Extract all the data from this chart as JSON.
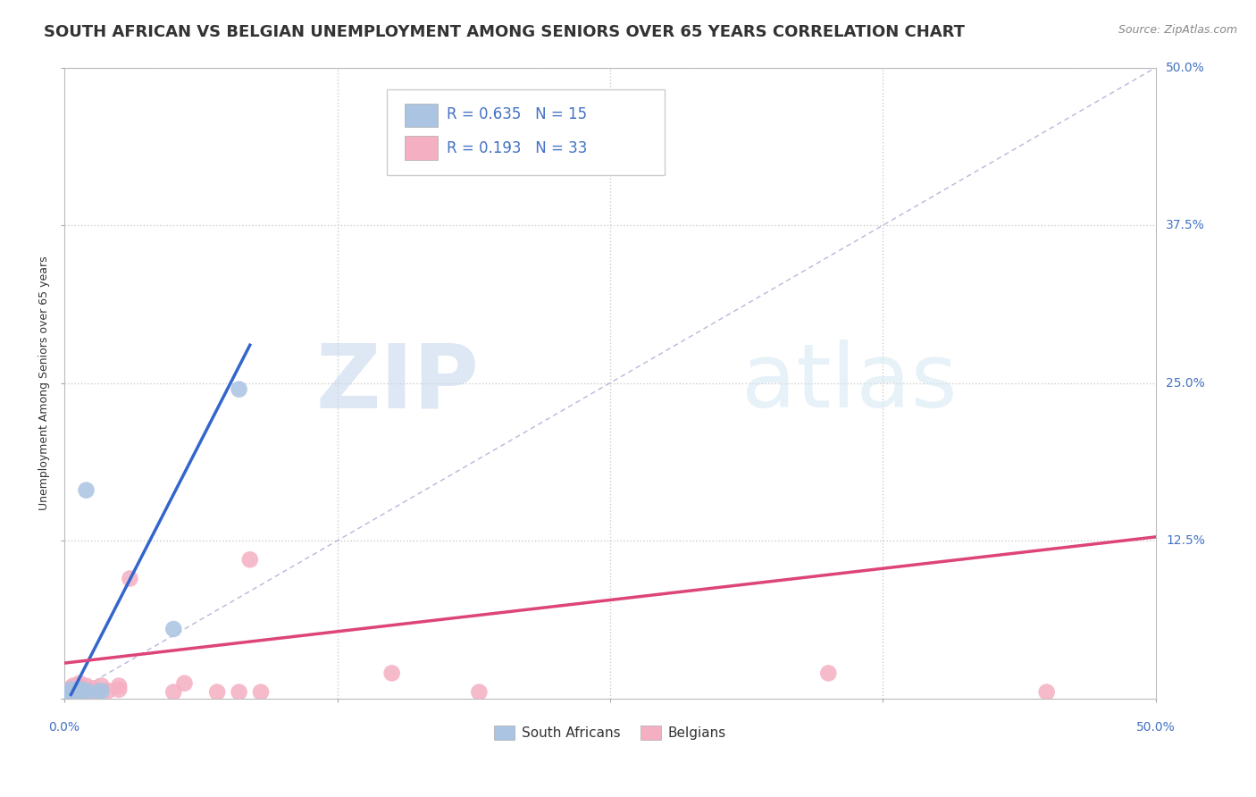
{
  "title": "SOUTH AFRICAN VS BELGIAN UNEMPLOYMENT AMONG SENIORS OVER 65 YEARS CORRELATION CHART",
  "source": "Source: ZipAtlas.com",
  "ylabel": "Unemployment Among Seniors over 65 years",
  "xlim": [
    0,
    0.5
  ],
  "ylim": [
    0,
    0.5
  ],
  "xticks": [
    0.0,
    0.125,
    0.25,
    0.375,
    0.5
  ],
  "yticks": [
    0.0,
    0.125,
    0.25,
    0.375,
    0.5
  ],
  "r_south_african": 0.635,
  "n_south_african": 15,
  "r_belgian": 0.193,
  "n_belgian": 33,
  "south_african_color": "#aac4e2",
  "belgian_color": "#f5afc2",
  "south_african_line_color": "#3366cc",
  "belgian_line_color": "#dd4477",
  "watermark_zip": "ZIP",
  "watermark_atlas": "atlas",
  "background_color": "#ffffff",
  "grid_color": "#cccccc",
  "title_fontsize": 13,
  "axis_label_fontsize": 9,
  "tick_label_color": "#4472c4",
  "tick_label_fontsize": 10,
  "legend_fontsize": 12,
  "sa_x": [
    0.003,
    0.003,
    0.003,
    0.005,
    0.005,
    0.006,
    0.007,
    0.008,
    0.008,
    0.01,
    0.01,
    0.015,
    0.017,
    0.05,
    0.08
  ],
  "sa_y": [
    0.003,
    0.005,
    0.007,
    0.005,
    0.007,
    0.005,
    0.006,
    0.005,
    0.007,
    0.006,
    0.165,
    0.005,
    0.006,
    0.055,
    0.245
  ],
  "be_x": [
    0.003,
    0.003,
    0.003,
    0.004,
    0.004,
    0.005,
    0.005,
    0.006,
    0.007,
    0.007,
    0.008,
    0.008,
    0.009,
    0.01,
    0.01,
    0.012,
    0.013,
    0.015,
    0.017,
    0.02,
    0.025,
    0.025,
    0.03,
    0.05,
    0.055,
    0.07,
    0.08,
    0.085,
    0.09,
    0.15,
    0.19,
    0.35,
    0.45
  ],
  "be_y": [
    0.003,
    0.006,
    0.008,
    0.005,
    0.01,
    0.005,
    0.01,
    0.005,
    0.007,
    0.012,
    0.005,
    0.009,
    0.005,
    0.006,
    0.01,
    0.005,
    0.008,
    0.005,
    0.01,
    0.006,
    0.007,
    0.01,
    0.095,
    0.005,
    0.012,
    0.005,
    0.005,
    0.11,
    0.005,
    0.02,
    0.005,
    0.02,
    0.005
  ],
  "sa_regline_x": [
    0.003,
    0.085
  ],
  "sa_regline_y": [
    0.003,
    0.28
  ],
  "be_regline_x": [
    0.0,
    0.5
  ],
  "be_regline_y": [
    0.028,
    0.128
  ]
}
